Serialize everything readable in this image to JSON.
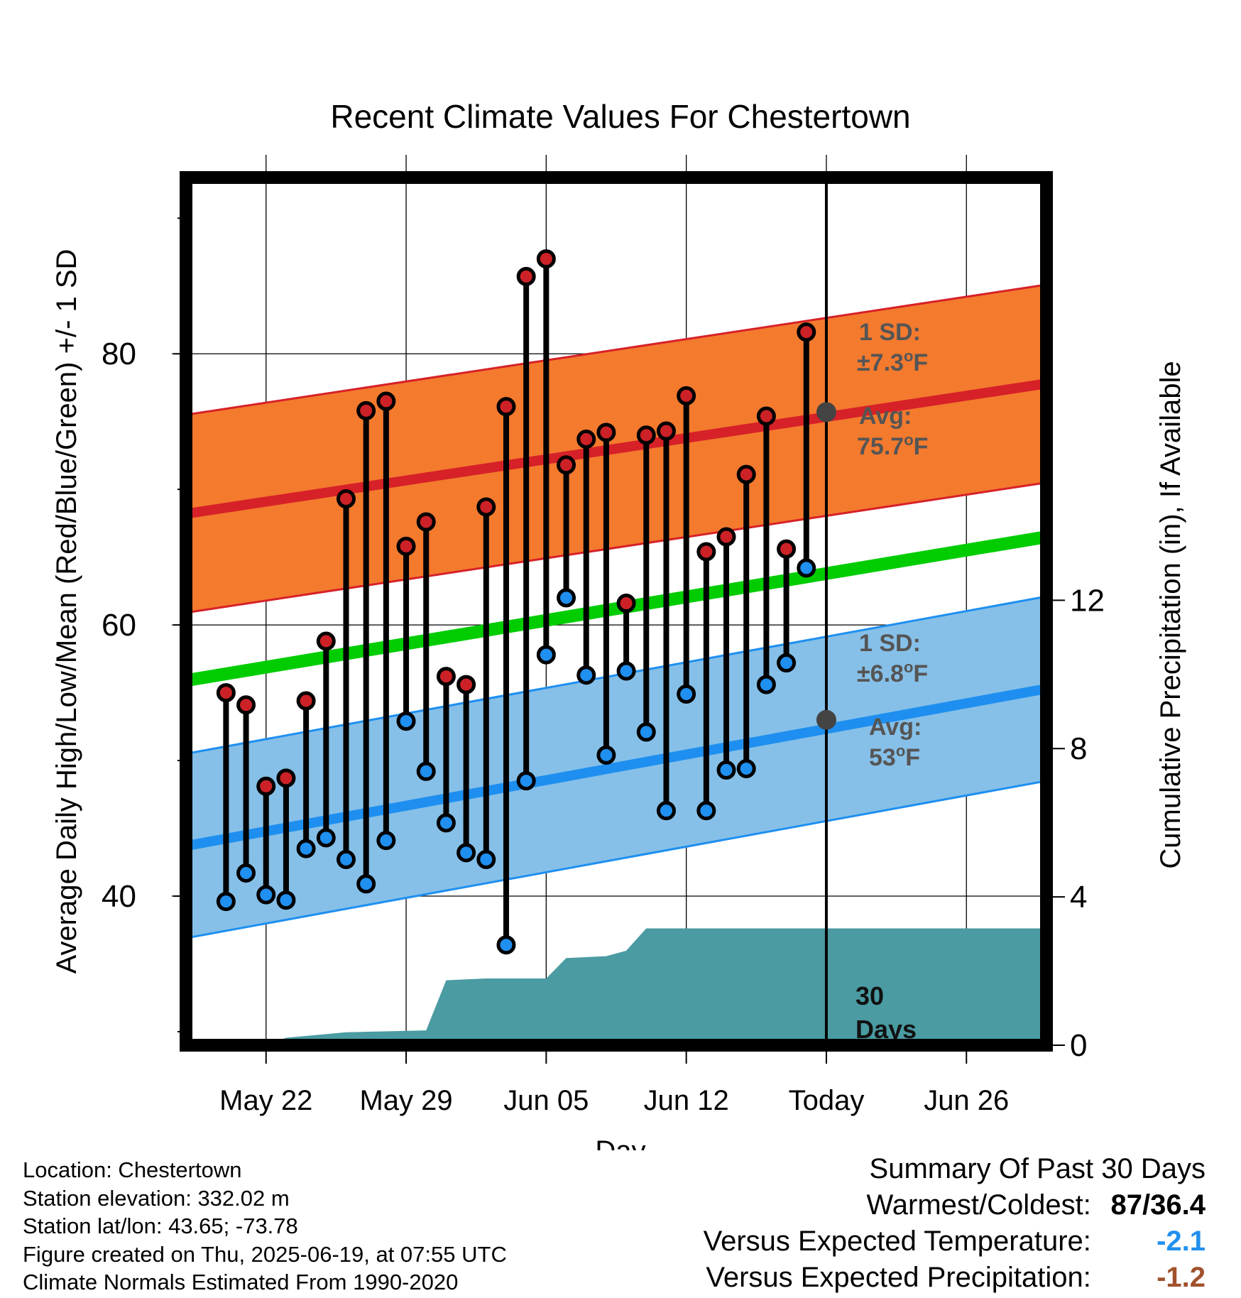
{
  "chart_data": {
    "type": "line",
    "title": "Recent Climate Values For Chestertown",
    "xlabel": "Day",
    "ylabel": "Average Daily High/Low/Mean (Red/Blue/Green) +/- 1 SD",
    "y2label": "Cumulative Precipitation (in), If Available",
    "ylim": [
      29,
      93
    ],
    "y_ticks": [
      40,
      60,
      80
    ],
    "y2lim": [
      0,
      23.4
    ],
    "y2_ticks": [
      0,
      4,
      8,
      12
    ],
    "xlim": [
      "2025-05-18",
      "2025-06-30"
    ],
    "x_ticks": [
      {
        "date": "2025-05-22",
        "label": "May 22"
      },
      {
        "date": "2025-05-29",
        "label": "May 29"
      },
      {
        "date": "2025-06-05",
        "label": "Jun 05"
      },
      {
        "date": "2025-06-12",
        "label": "Jun 12"
      },
      {
        "date": "2025-06-19",
        "label": "Today"
      },
      {
        "date": "2025-06-26",
        "label": "Jun 26"
      }
    ],
    "grid": true,
    "daily": [
      {
        "date": "2025-05-20",
        "high": 55.0,
        "low": 39.6
      },
      {
        "date": "2025-05-21",
        "high": 54.1,
        "low": 41.7
      },
      {
        "date": "2025-05-22",
        "high": 48.1,
        "low": 40.1
      },
      {
        "date": "2025-05-23",
        "high": 48.7,
        "low": 39.7
      },
      {
        "date": "2025-05-24",
        "high": 54.4,
        "low": 43.5
      },
      {
        "date": "2025-05-25",
        "high": 58.8,
        "low": 44.3
      },
      {
        "date": "2025-05-26",
        "high": 69.3,
        "low": 42.7
      },
      {
        "date": "2025-05-27",
        "high": 75.8,
        "low": 40.9
      },
      {
        "date": "2025-05-28",
        "high": 76.5,
        "low": 44.1
      },
      {
        "date": "2025-05-29",
        "high": 65.8,
        "low": 52.9
      },
      {
        "date": "2025-05-30",
        "high": 67.6,
        "low": 49.2
      },
      {
        "date": "2025-05-31",
        "high": 56.2,
        "low": 45.4
      },
      {
        "date": "2025-06-01",
        "high": 55.6,
        "low": 43.2
      },
      {
        "date": "2025-06-02",
        "high": 68.7,
        "low": 42.7
      },
      {
        "date": "2025-06-03",
        "high": 76.1,
        "low": 36.4
      },
      {
        "date": "2025-06-04",
        "high": 85.7,
        "low": 48.5
      },
      {
        "date": "2025-06-05",
        "high": 87.0,
        "low": 57.8
      },
      {
        "date": "2025-06-06",
        "high": 71.8,
        "low": 62.0
      },
      {
        "date": "2025-06-07",
        "high": 73.7,
        "low": 56.3
      },
      {
        "date": "2025-06-08",
        "high": 74.2,
        "low": 50.4
      },
      {
        "date": "2025-06-09",
        "high": 61.6,
        "low": 56.6
      },
      {
        "date": "2025-06-10",
        "high": 74.0,
        "low": 52.1
      },
      {
        "date": "2025-06-11",
        "high": 74.3,
        "low": 46.3
      },
      {
        "date": "2025-06-12",
        "high": 76.9,
        "low": 54.9
      },
      {
        "date": "2025-06-13",
        "high": 65.4,
        "low": 46.3
      },
      {
        "date": "2025-06-14",
        "high": 66.5,
        "low": 49.3
      },
      {
        "date": "2025-06-15",
        "high": 71.1,
        "low": 49.4
      },
      {
        "date": "2025-06-16",
        "high": 75.4,
        "low": 55.6
      },
      {
        "date": "2025-06-17",
        "high": 65.6,
        "low": 57.2
      },
      {
        "date": "2025-06-18",
        "high": 81.6,
        "low": 64.2
      }
    ],
    "normals": {
      "dates": [
        "2025-05-18",
        "2025-06-30"
      ],
      "high_avg": [
        68.2,
        77.8
      ],
      "high_sd": 7.3,
      "low_avg": [
        43.7,
        55.3
      ],
      "low_sd": 6.8,
      "mean_avg": [
        55.9,
        66.5
      ]
    },
    "precip_cumulative": {
      "x": [
        "2025-05-20",
        "2025-05-22",
        "2025-05-23",
        "2025-05-25",
        "2025-05-26",
        "2025-05-30",
        "2025-05-31",
        "2025-06-02",
        "2025-06-05",
        "2025-06-06",
        "2025-06-08",
        "2025-06-09",
        "2025-06-10",
        "2025-06-30"
      ],
      "y": [
        0.0,
        0.0,
        0.2,
        0.3,
        0.35,
        0.4,
        1.75,
        1.8,
        1.8,
        2.35,
        2.4,
        2.55,
        3.15,
        3.15
      ]
    },
    "today_date": "2025-06-19",
    "annotations": {
      "high_sd": "1 SD:",
      "high_sd_value": "±7.3°F",
      "high_avg": "Avg:",
      "high_avg_value": "75.7°F",
      "low_sd": "1 SD:",
      "low_sd_value": "±6.8°F",
      "low_avg": "Avg:",
      "low_avg_value": "53°F",
      "days_count": "30",
      "days_word": "Days"
    },
    "colors": {
      "high_band": "#f47a2e",
      "high_line": "#d62128",
      "low_band": "#86c0e8",
      "low_line": "#1e8ff0",
      "mean_line": "#00cc00",
      "precip": "#4a9ba2",
      "high_dot": "#cc2127",
      "low_dot": "#1f8ff0",
      "annotation_text": "#555555"
    }
  },
  "info": {
    "location": "Location: Chestertown",
    "elevation": "Station elevation: 332.02 m",
    "latlon": "Station lat/lon: 43.65; -73.78",
    "created": "Figure created on Thu, 2025-06-19, at 07:55 UTC",
    "normals": "Climate Normals Estimated From 1990-2020"
  },
  "summary": {
    "title": "Summary Of Past 30 Days",
    "warmest_label": "Warmest/Coldest:",
    "warmest_value": "87/36.4",
    "temp_label": "Versus Expected Temperature:",
    "temp_value": "-2.1",
    "temp_color": "#2190ee",
    "precip_label": "Versus Expected Precipitation:",
    "precip_value": "-1.2",
    "precip_color": "#a0522d"
  }
}
